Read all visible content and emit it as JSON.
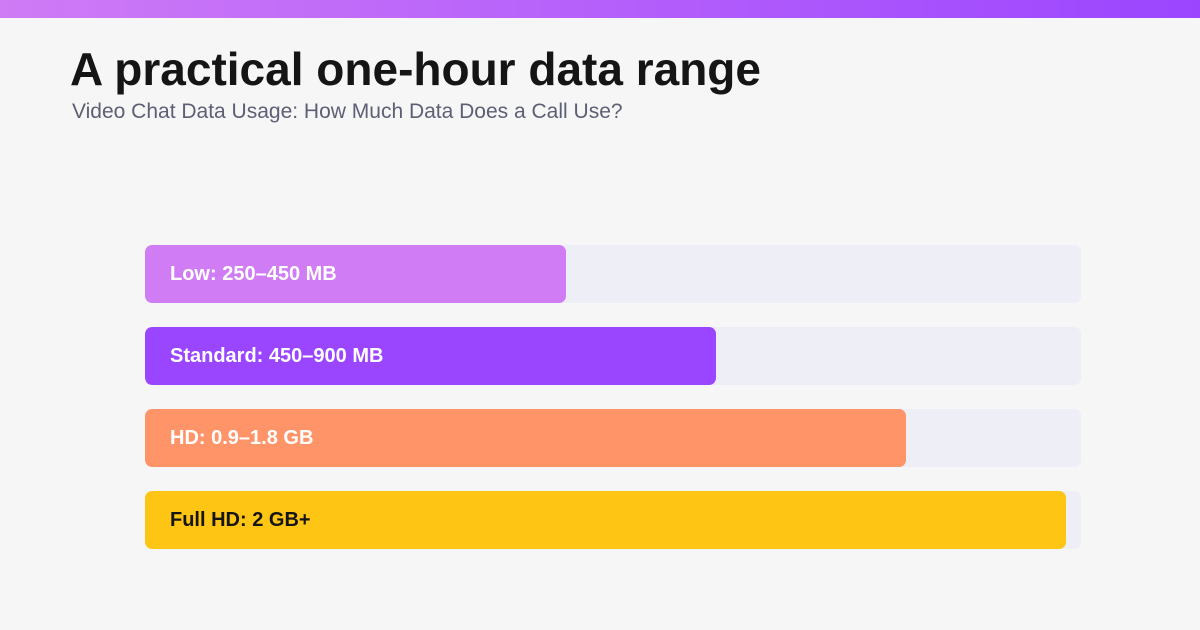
{
  "header": {
    "title": "A practical one-hour data range",
    "subtitle": "Video Chat Data Usage: How Much Data Does a Call Use?",
    "gradient_start": "#cf7bf6",
    "gradient_end": "#9b45ff"
  },
  "chart_data": {
    "type": "bar",
    "orientation": "horizontal",
    "title": "A practical one-hour data range",
    "subtitle": "Video Chat Data Usage: How Much Data Does a Call Use?",
    "grid": false,
    "legend": "none",
    "xlim": [
      0,
      1
    ],
    "items": [
      {
        "label": "Low: 250–450 MB",
        "fill_fraction": 0.45,
        "color": "#d07cf5",
        "text_color": "#ffffff"
      },
      {
        "label": "Standard: 450–900 MB",
        "fill_fraction": 0.61,
        "color": "#9a45ff",
        "text_color": "#ffffff"
      },
      {
        "label": "HD: 0.9–1.8 GB",
        "fill_fraction": 0.813,
        "color": "#ff9468",
        "text_color": "#ffffff"
      },
      {
        "label": "Full HD: 2 GB+",
        "fill_fraction": 0.984,
        "color": "#fec514",
        "text_color": "#151515"
      }
    ]
  }
}
